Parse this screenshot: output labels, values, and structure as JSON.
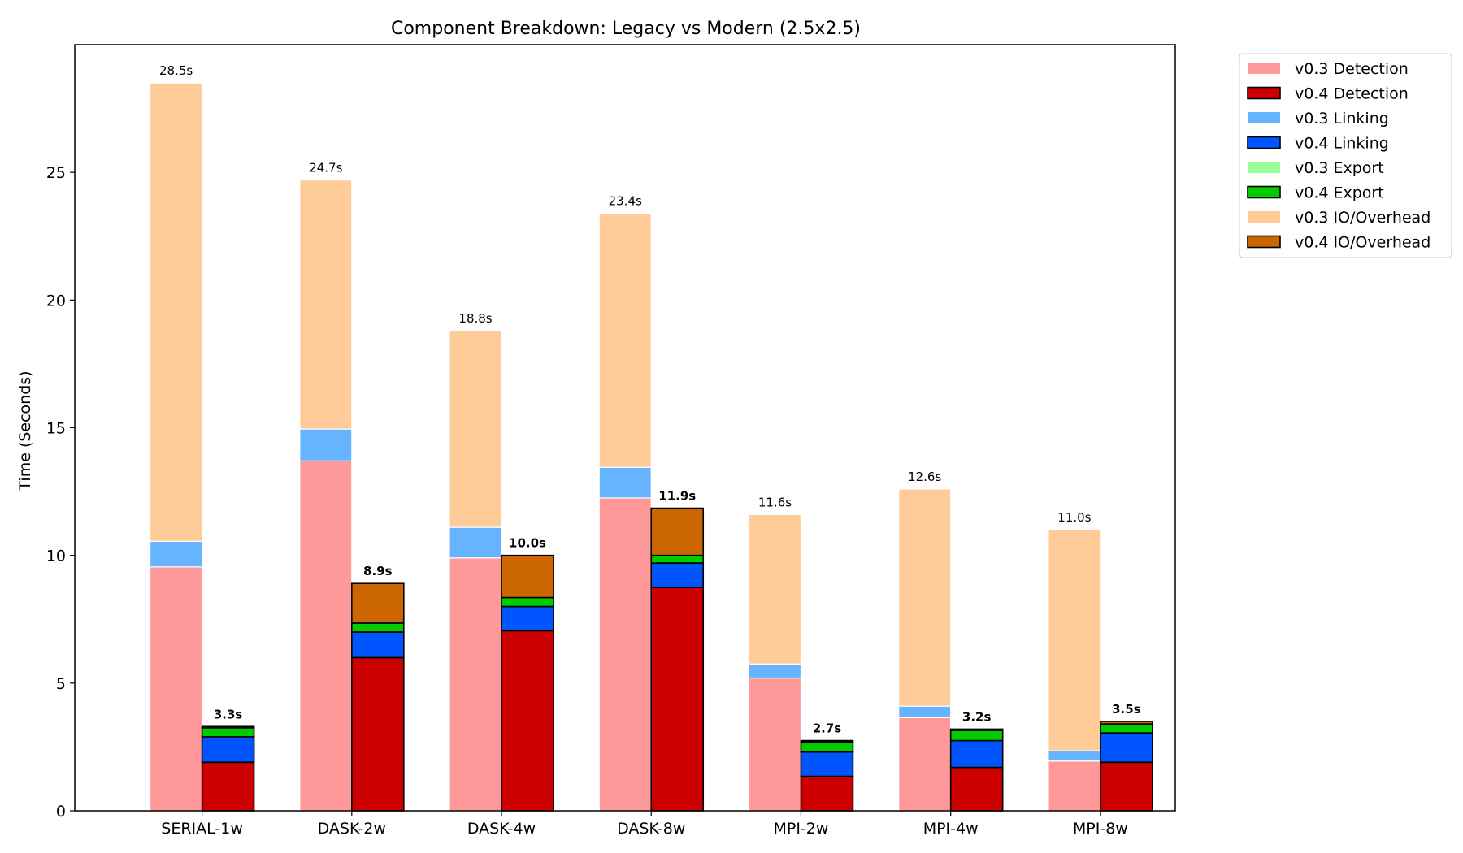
{
  "chart_data": {
    "type": "bar",
    "title": "Component Breakdown: Legacy vs Modern (2.5x2.5)",
    "xlabel": "",
    "ylabel": "Time (Seconds)",
    "ylim": [
      0,
      30
    ],
    "yticks": [
      0,
      5,
      10,
      15,
      20,
      25
    ],
    "grid": false,
    "legend_position": "outside-top-right",
    "categories": [
      "SERIAL-1w",
      "DASK-2w",
      "DASK-4w",
      "DASK-8w",
      "MPI-2w",
      "MPI-4w",
      "MPI-8w"
    ],
    "components": [
      "Detection",
      "Linking",
      "Export",
      "IO/Overhead"
    ],
    "series": [
      {
        "name": "v0.3 Detection",
        "version": "v0.3",
        "component": "Detection",
        "color": "#ff9999",
        "values": [
          9.55,
          13.7,
          9.9,
          12.25,
          5.2,
          3.65,
          1.95
        ]
      },
      {
        "name": "v0.4 Detection",
        "version": "v0.4",
        "component": "Detection",
        "color": "#cc0000",
        "values": [
          1.9,
          6.0,
          7.05,
          8.75,
          1.35,
          1.7,
          1.9
        ]
      },
      {
        "name": "v0.3 Linking",
        "version": "v0.3",
        "component": "Linking",
        "color": "#66b3ff",
        "values": [
          1.0,
          1.25,
          1.2,
          1.2,
          0.55,
          0.45,
          0.4
        ]
      },
      {
        "name": "v0.4 Linking",
        "version": "v0.4",
        "component": "Linking",
        "color": "#0055ff",
        "values": [
          1.0,
          1.0,
          0.95,
          0.95,
          0.95,
          1.05,
          1.15
        ]
      },
      {
        "name": "v0.3 Export",
        "version": "v0.3",
        "component": "Export",
        "color": "#99ff99",
        "values": [
          0.0,
          0.0,
          0.0,
          0.0,
          0.0,
          0.0,
          0.0
        ]
      },
      {
        "name": "v0.4 Export",
        "version": "v0.4",
        "component": "Export",
        "color": "#00cc00",
        "values": [
          0.35,
          0.35,
          0.35,
          0.3,
          0.4,
          0.4,
          0.35
        ]
      },
      {
        "name": "v0.3 IO/Overhead",
        "version": "v0.3",
        "component": "IO/Overhead",
        "color": "#ffcc99",
        "values": [
          17.95,
          9.75,
          7.7,
          9.95,
          5.85,
          8.5,
          8.65
        ]
      },
      {
        "name": "v0.4 IO/Overhead",
        "version": "v0.4",
        "component": "IO/Overhead",
        "color": "#cc6600",
        "values": [
          0.05,
          1.55,
          1.65,
          1.85,
          0.05,
          0.05,
          0.1
        ]
      }
    ],
    "totals": {
      "v0.3": [
        "28.5s",
        "24.7s",
        "18.8s",
        "23.4s",
        "11.6s",
        "12.6s",
        "11.0s"
      ],
      "v0.4": [
        "3.3s",
        "8.9s",
        "10.0s",
        "11.9s",
        "2.7s",
        "3.2s",
        "3.5s"
      ]
    }
  }
}
